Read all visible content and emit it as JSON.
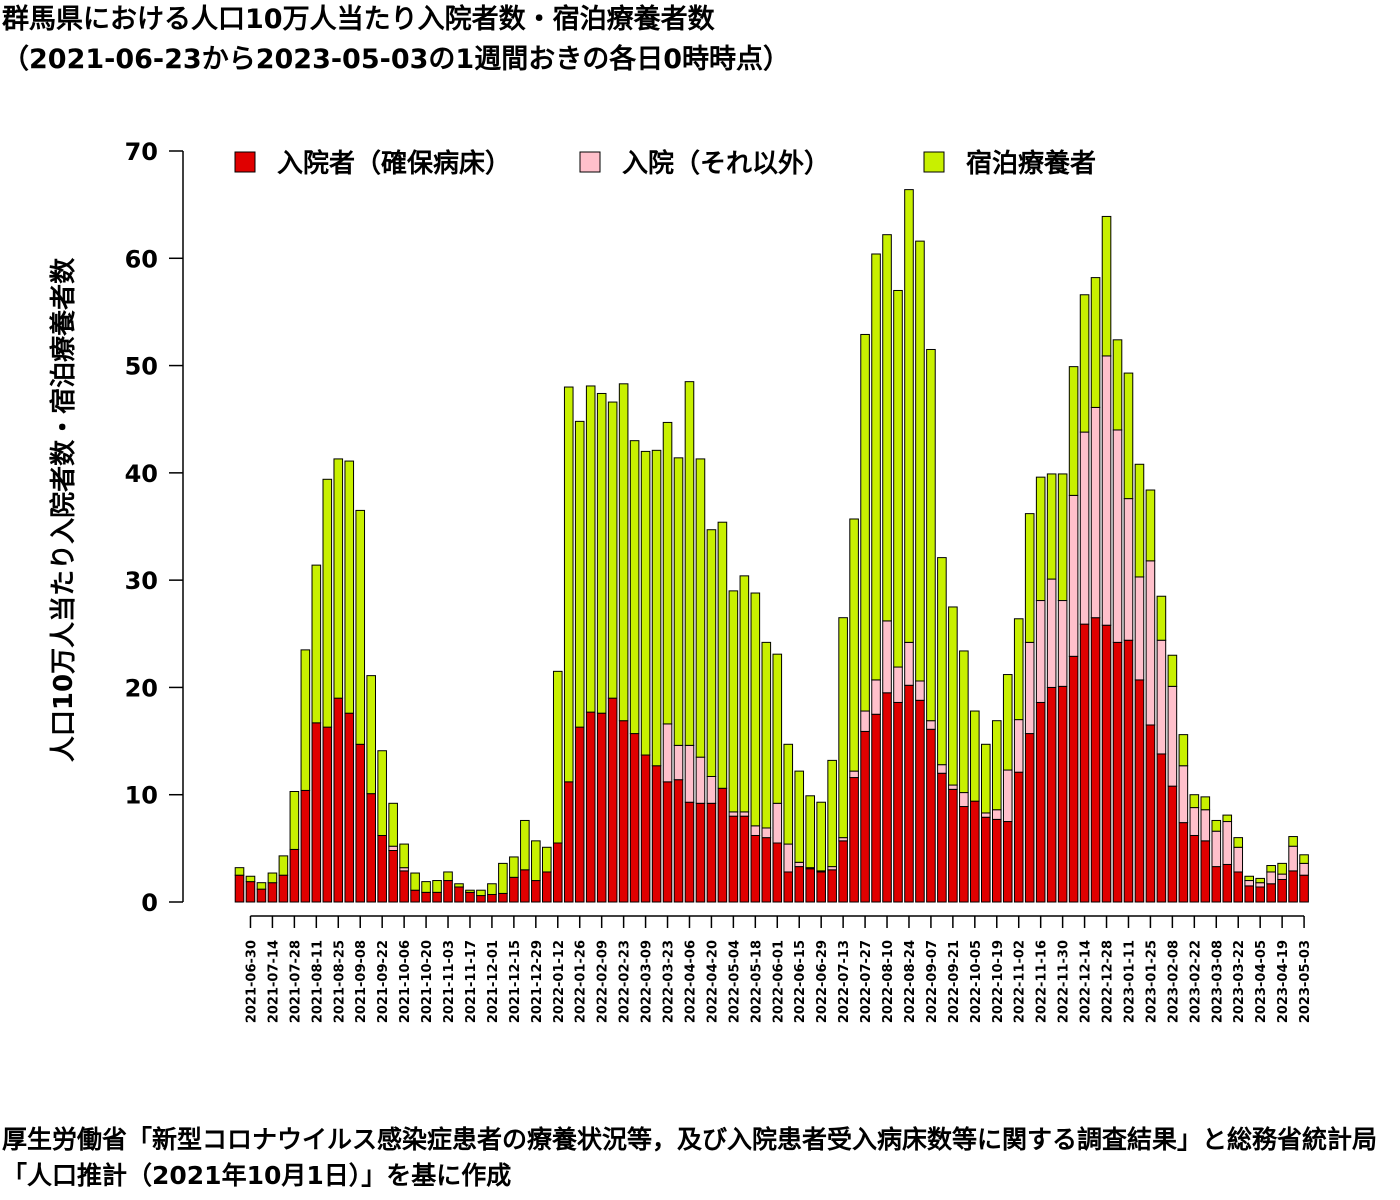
{
  "chart_data": {
    "type": "bar",
    "stacked": true,
    "title": "群馬県における人口10万人当たり入院者数・宿泊療養者数",
    "subtitle": "（2021-06-23から2023-05-03の1週間おきの各日0時時点）",
    "ylabel": "人口10万人当たり入院者数・宿泊療養者数",
    "xlabel": "",
    "ylim": [
      0,
      70
    ],
    "yticks": [
      0,
      10,
      20,
      30,
      40,
      50,
      60,
      70
    ],
    "legend_position": "top",
    "source": "厚生労働省「新型コロナウイルス感染症患者の療養状況等，及び入院患者受入病床数等に関する調査結果」と総務省統計局「人口推計（2021年10月1日）」を基に作成",
    "categories": [
      "2021-06-23",
      "2021-06-30",
      "2021-07-07",
      "2021-07-14",
      "2021-07-21",
      "2021-07-28",
      "2021-08-04",
      "2021-08-11",
      "2021-08-18",
      "2021-08-25",
      "2021-09-01",
      "2021-09-08",
      "2021-09-15",
      "2021-09-22",
      "2021-09-29",
      "2021-10-06",
      "2021-10-13",
      "2021-10-20",
      "2021-10-27",
      "2021-11-03",
      "2021-11-10",
      "2021-11-17",
      "2021-11-24",
      "2021-12-01",
      "2021-12-08",
      "2021-12-15",
      "2021-12-22",
      "2021-12-29",
      "2022-01-05",
      "2022-01-12",
      "2022-01-19",
      "2022-01-26",
      "2022-02-02",
      "2022-02-09",
      "2022-02-16",
      "2022-02-23",
      "2022-03-02",
      "2022-03-09",
      "2022-03-16",
      "2022-03-23",
      "2022-03-30",
      "2022-04-06",
      "2022-04-13",
      "2022-04-20",
      "2022-04-27",
      "2022-05-04",
      "2022-05-11",
      "2022-05-18",
      "2022-05-25",
      "2022-06-01",
      "2022-06-08",
      "2022-06-15",
      "2022-06-22",
      "2022-06-29",
      "2022-07-06",
      "2022-07-13",
      "2022-07-20",
      "2022-07-27",
      "2022-08-03",
      "2022-08-10",
      "2022-08-17",
      "2022-08-24",
      "2022-08-31",
      "2022-09-07",
      "2022-09-14",
      "2022-09-21",
      "2022-09-28",
      "2022-10-05",
      "2022-10-12",
      "2022-10-19",
      "2022-10-26",
      "2022-11-02",
      "2022-11-09",
      "2022-11-16",
      "2022-11-23",
      "2022-11-30",
      "2022-12-07",
      "2022-12-14",
      "2022-12-21",
      "2022-12-28",
      "2023-01-04",
      "2023-01-11",
      "2023-01-18",
      "2023-01-25",
      "2023-02-01",
      "2023-02-08",
      "2023-02-15",
      "2023-02-22",
      "2023-03-01",
      "2023-03-08",
      "2023-03-15",
      "2023-03-22",
      "2023-03-29",
      "2023-04-05",
      "2023-04-12",
      "2023-04-19",
      "2023-04-26",
      "2023-05-03"
    ],
    "xtick_labels": [
      "2021-06-30",
      "2021-07-14",
      "2021-07-28",
      "2021-08-11",
      "2021-08-25",
      "2021-09-08",
      "2021-09-22",
      "2021-10-06",
      "2021-10-20",
      "2021-11-03",
      "2021-11-17",
      "2021-12-01",
      "2021-12-15",
      "2021-12-29",
      "2022-01-12",
      "2022-01-26",
      "2022-02-09",
      "2022-02-23",
      "2022-03-09",
      "2022-03-23",
      "2022-04-06",
      "2022-04-20",
      "2022-05-04",
      "2022-05-18",
      "2022-06-01",
      "2022-06-15",
      "2022-06-29",
      "2022-07-13",
      "2022-07-27",
      "2022-08-10",
      "2022-08-24",
      "2022-09-07",
      "2022-09-21",
      "2022-10-05",
      "2022-10-19",
      "2022-11-02",
      "2022-11-16",
      "2022-11-30",
      "2022-12-14",
      "2022-12-28",
      "2023-01-11",
      "2023-01-25",
      "2023-02-08",
      "2023-02-22",
      "2023-03-08",
      "2023-03-22",
      "2023-04-05",
      "2023-04-19",
      "2023-05-03"
    ],
    "series": [
      {
        "name": "入院者（確保病床）",
        "color": "#e00000",
        "values": [
          2.5,
          1.9,
          1.2,
          1.8,
          2.5,
          4.9,
          10.4,
          16.7,
          16.3,
          19.0,
          17.6,
          14.7,
          10.1,
          6.2,
          4.8,
          2.9,
          1.1,
          0.9,
          0.9,
          2.0,
          1.4,
          0.9,
          0.6,
          0.7,
          0.8,
          2.3,
          3.0,
          2.0,
          2.8,
          5.5,
          11.2,
          16.3,
          17.7,
          17.6,
          19.0,
          16.9,
          15.7,
          13.7,
          12.7,
          11.2,
          11.4,
          9.3,
          9.2,
          9.2,
          10.6,
          8.0,
          8.0,
          6.2,
          6.0,
          5.5,
          2.8,
          3.3,
          3.1,
          2.8,
          3.0,
          5.7,
          11.6,
          15.9,
          17.5,
          19.5,
          18.6,
          20.2,
          18.8,
          16.1,
          12.0,
          10.5,
          8.9,
          9.4,
          7.9,
          7.7,
          7.5,
          12.1,
          15.7,
          18.6,
          20.0,
          20.1,
          22.9,
          25.9,
          26.5,
          25.8,
          24.2,
          24.4,
          20.7,
          16.5,
          13.8,
          10.8,
          7.4,
          6.2,
          5.7,
          3.3,
          3.5,
          2.8,
          1.5,
          1.4,
          1.7,
          2.1,
          2.9,
          2.5
        ]
      },
      {
        "name": "入院（それ以外）",
        "color": "#ffc0cb",
        "values": [
          0,
          0,
          0,
          0,
          0,
          0,
          0,
          0,
          0,
          0,
          0,
          0,
          0,
          0,
          0.4,
          0.3,
          0,
          0,
          0,
          0,
          0,
          0,
          0,
          0,
          0,
          0,
          0,
          0,
          0,
          0,
          0,
          0,
          0,
          0,
          0,
          0,
          0,
          0,
          0,
          5.4,
          3.2,
          5.3,
          4.3,
          2.5,
          0,
          0.4,
          0.4,
          0.9,
          0.9,
          3.7,
          2.6,
          0.4,
          0.1,
          0.1,
          0.3,
          0.3,
          0.6,
          1.9,
          3.2,
          6.7,
          3.3,
          4.0,
          1.8,
          0.8,
          0.8,
          0.4,
          1.3,
          0,
          0.4,
          0.9,
          4.8,
          4.9,
          8.5,
          9.5,
          10.1,
          8.0,
          15.0,
          17.9,
          19.6,
          25.1,
          19.8,
          13.2,
          9.6,
          15.3,
          10.6,
          9.3,
          5.3,
          2.6,
          2.9,
          3.3,
          4.0,
          2.3,
          0.5,
          0.4,
          1.1,
          0.5,
          2.3,
          1.1
        ]
      },
      {
        "name": "宿泊療養者",
        "color": "#c8f000",
        "values": [
          0.7,
          0.5,
          0.6,
          0.9,
          1.8,
          5.4,
          13.1,
          14.7,
          23.1,
          22.3,
          23.5,
          21.8,
          11.0,
          7.9,
          4.0,
          2.2,
          1.6,
          1.0,
          1.1,
          0.8,
          0.3,
          0.2,
          0.5,
          1.0,
          2.8,
          1.9,
          4.6,
          3.7,
          2.3,
          16.0,
          36.8,
          28.5,
          30.4,
          29.8,
          27.6,
          31.4,
          27.3,
          28.3,
          29.4,
          28.1,
          26.8,
          33.9,
          27.8,
          23.0,
          24.8,
          20.6,
          22.0,
          21.7,
          17.3,
          13.9,
          9.3,
          8.5,
          6.7,
          6.4,
          9.9,
          20.5,
          23.5,
          35.1,
          39.7,
          36.0,
          35.1,
          42.2,
          41.0,
          34.6,
          19.3,
          16.6,
          13.2,
          8.4,
          6.4,
          8.3,
          8.9,
          9.4,
          12.0,
          11.5,
          9.8,
          11.8,
          12.0,
          12.8,
          12.1,
          13.0,
          8.4,
          11.7,
          10.5,
          6.6,
          4.1,
          2.9,
          2.9,
          1.2,
          1.2,
          1.0,
          0.6,
          0.9,
          0.4,
          0.4,
          0.6,
          1.0,
          0.9,
          0.8
        ]
      }
    ]
  }
}
